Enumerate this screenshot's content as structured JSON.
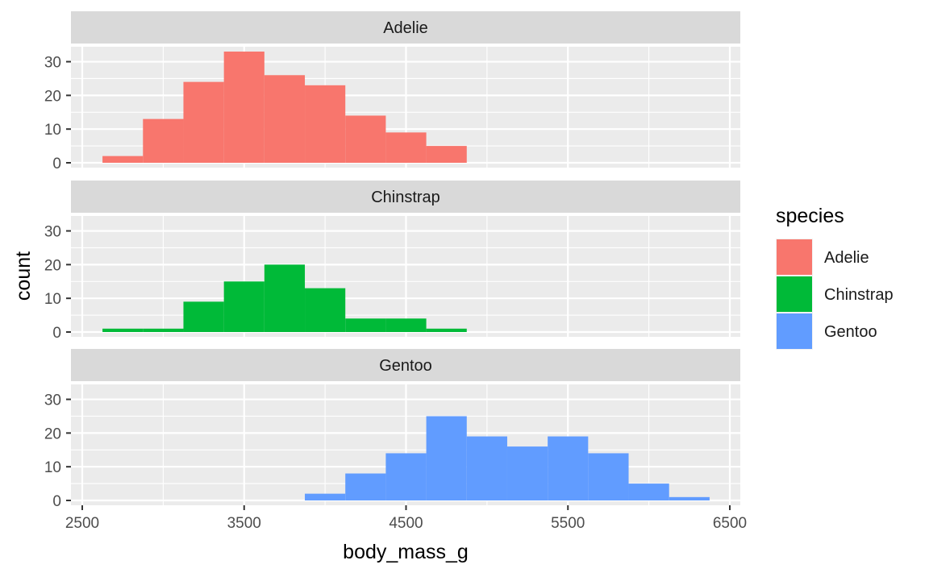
{
  "chart_data": {
    "type": "bar",
    "subtype": "histogram",
    "facet_layout": "vertical",
    "xlabel": "body_mass_g",
    "ylabel": "count",
    "xlim": [
      2500,
      6500
    ],
    "ylim": [
      0,
      33
    ],
    "x_ticks": [
      2500,
      3500,
      4500,
      5500,
      6500
    ],
    "y_ticks": [
      0,
      10,
      20,
      30
    ],
    "grid": true,
    "legend_title": "species",
    "legend_position": "right",
    "bin_edges": [
      2625,
      2875,
      3125,
      3375,
      3625,
      3875,
      4125,
      4375,
      4625,
      4875,
      5125,
      5375,
      5625,
      5875,
      6125,
      6375
    ],
    "series": [
      {
        "name": "Adelie",
        "color": "#F8766D",
        "values": [
          2,
          13,
          24,
          33,
          26,
          23,
          14,
          9,
          5,
          0,
          0,
          0,
          0,
          0,
          0
        ]
      },
      {
        "name": "Chinstrap",
        "color": "#00BA38",
        "values": [
          1,
          1,
          9,
          15,
          20,
          13,
          4,
          4,
          1,
          0,
          0,
          0,
          0,
          0,
          0
        ]
      },
      {
        "name": "Gentoo",
        "color": "#619CFF",
        "values": [
          0,
          0,
          0,
          0,
          0,
          2,
          8,
          14,
          25,
          19,
          16,
          19,
          14,
          5,
          1
        ]
      }
    ]
  }
}
